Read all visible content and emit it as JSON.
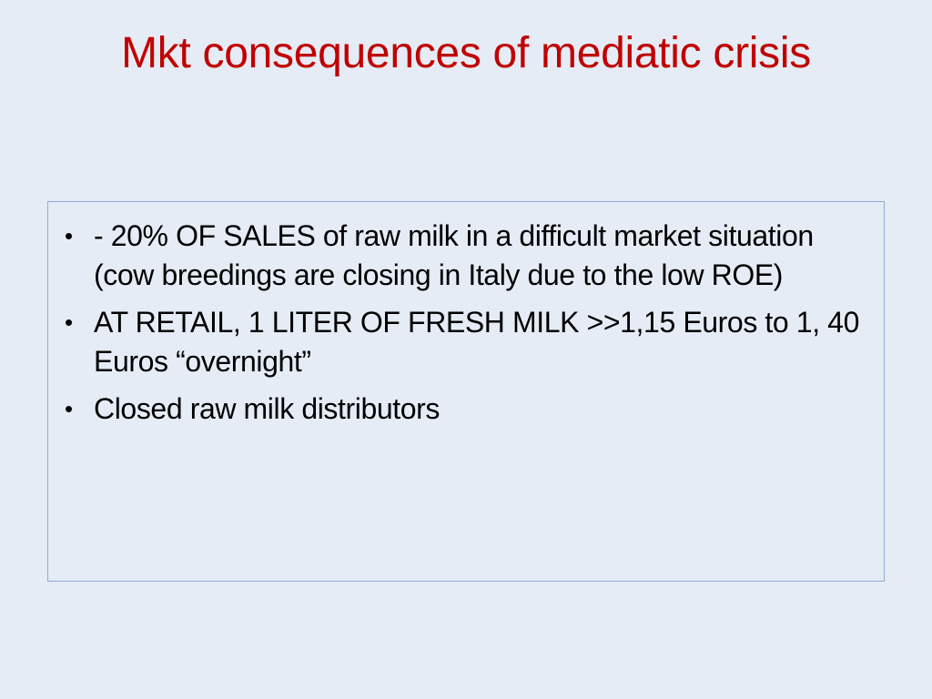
{
  "slide": {
    "title": "Mkt consequences of mediatic crisis",
    "bullet_glyph": "•",
    "bullets": [
      {
        "text": "- 20% OF SALES of raw milk in a difficult market situation (cow breedings are closing in Italy due to the low ROE)"
      },
      {
        "text": "AT RETAIL, 1 LITER OF FRESH MILK >>1,15 Euros to 1, 40 Euros “overnight”"
      },
      {
        "text": "Closed raw milk distributors"
      }
    ]
  },
  "colors": {
    "background": "#e6ecf5",
    "title": "#c00000",
    "box_border": "#8eaad6",
    "text": "#000000"
  }
}
